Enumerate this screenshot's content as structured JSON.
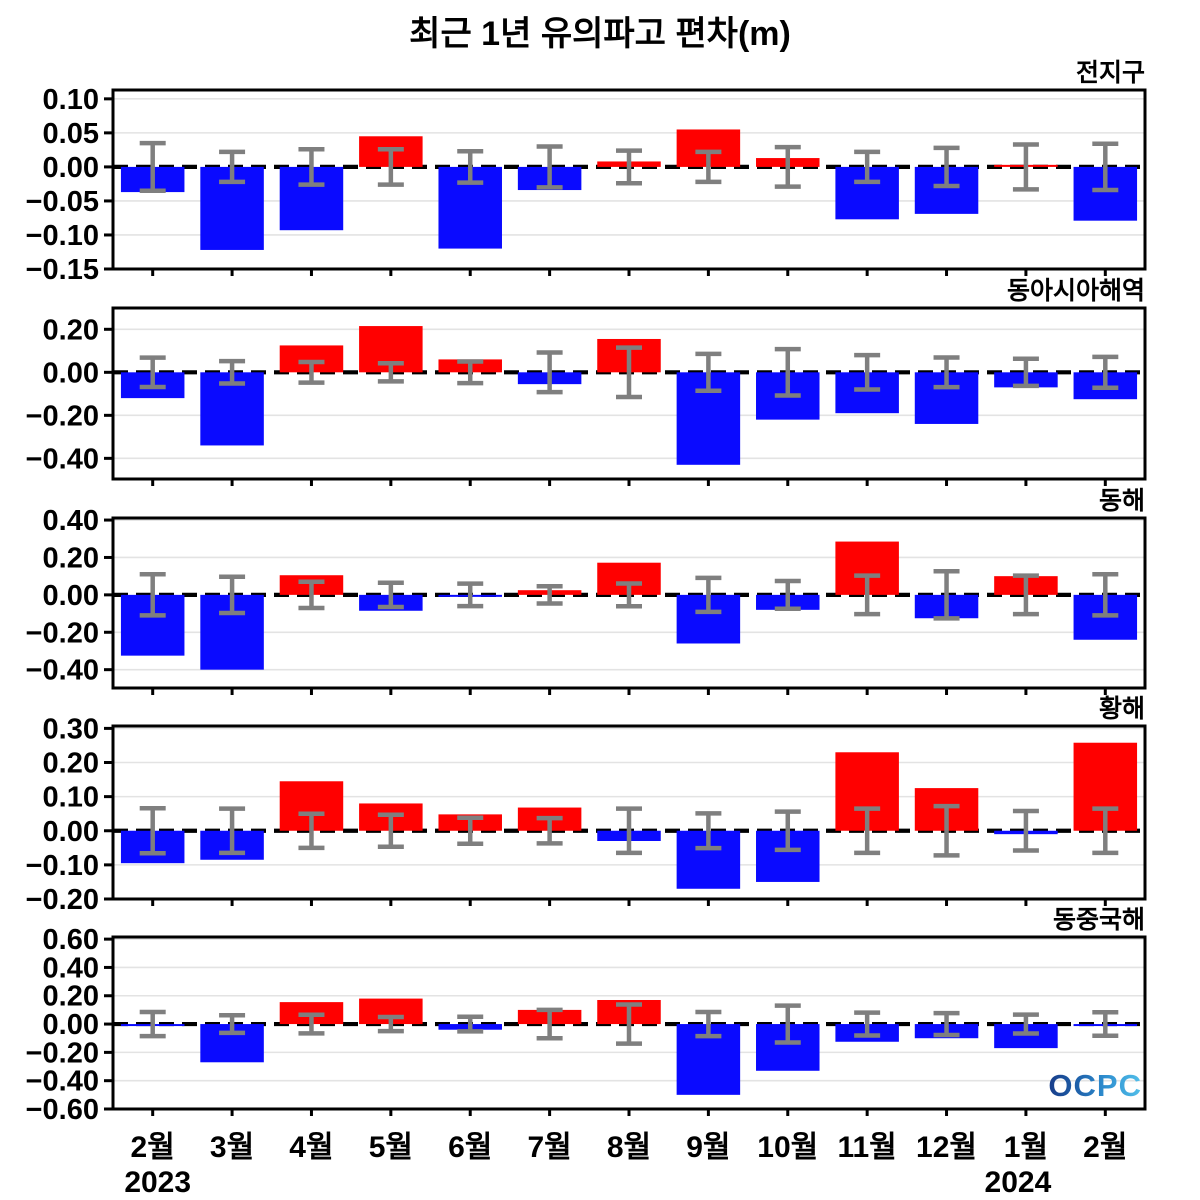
{
  "title": "최근 1년 유의파고 편차(m)",
  "logo": "OCPC",
  "x_axis": {
    "months": [
      "2월",
      "3월",
      "4월",
      "5월",
      "6월",
      "7월",
      "8월",
      "9월",
      "10월",
      "11월",
      "12월",
      "1월",
      "2월"
    ],
    "year_left": "2023",
    "year_right": "2024",
    "year_right_under_index": 11
  },
  "colors": {
    "positive_bar": "#ff0000",
    "negative_bar": "#0a0aff",
    "error_bar": "#7f7f7f",
    "zero_line": "#000000",
    "grid_line": "#e3e3e3",
    "frame": "#000000",
    "text": "#000000"
  },
  "chart_data": [
    {
      "type": "bar",
      "title": "전지구",
      "categories": [
        "2월",
        "3월",
        "4월",
        "5월",
        "6월",
        "7월",
        "8월",
        "9월",
        "10월",
        "11월",
        "12월",
        "1월",
        "2월"
      ],
      "values": [
        -0.037,
        -0.122,
        -0.093,
        0.045,
        -0.12,
        -0.034,
        0.008,
        0.055,
        0.013,
        -0.077,
        -0.069,
        0.003,
        -0.079
      ],
      "errors": [
        0.035,
        0.022,
        0.026,
        0.026,
        0.023,
        0.03,
        0.024,
        0.022,
        0.029,
        0.022,
        0.028,
        0.033,
        0.034
      ],
      "ylim": [
        -0.15,
        0.113
      ],
      "yticks": [
        {
          "value": 0.1,
          "label": "0.10"
        },
        {
          "value": 0.05,
          "label": "0.05"
        },
        {
          "value": 0.0,
          "label": "0.00"
        },
        {
          "value": -0.05,
          "label": "−0.05"
        },
        {
          "value": -0.1,
          "label": "−0.10"
        },
        {
          "value": -0.15,
          "label": "−0.15"
        }
      ],
      "grid": true,
      "legend": "none",
      "bar_color_rule": "red positive / blue negative, error bars centered on zero"
    },
    {
      "type": "bar",
      "title": "동아시아해역",
      "categories": [
        "2월",
        "3월",
        "4월",
        "5월",
        "6월",
        "7월",
        "8월",
        "9월",
        "10월",
        "11월",
        "12월",
        "1월",
        "2월"
      ],
      "values": [
        -0.12,
        -0.34,
        0.125,
        0.215,
        0.06,
        -0.055,
        0.155,
        -0.43,
        -0.22,
        -0.19,
        -0.24,
        -0.07,
        -0.125
      ],
      "errors": [
        0.068,
        0.052,
        0.048,
        0.042,
        0.05,
        0.092,
        0.115,
        0.086,
        0.108,
        0.08,
        0.069,
        0.063,
        0.072
      ],
      "ylim": [
        -0.496,
        0.299
      ],
      "yticks": [
        {
          "value": 0.2,
          "label": "0.20"
        },
        {
          "value": 0.0,
          "label": "0.00"
        },
        {
          "value": -0.2,
          "label": "−0.20"
        },
        {
          "value": -0.4,
          "label": "−0.40"
        }
      ],
      "grid": true,
      "legend": "none",
      "bar_color_rule": "red positive / blue negative, error bars centered on zero"
    },
    {
      "type": "bar",
      "title": "동해",
      "categories": [
        "2월",
        "3월",
        "4월",
        "5월",
        "6월",
        "7월",
        "8월",
        "9월",
        "10월",
        "11월",
        "12월",
        "1월",
        "2월"
      ],
      "values": [
        -0.325,
        -0.4,
        0.105,
        -0.085,
        -0.005,
        0.025,
        0.172,
        -0.26,
        -0.08,
        0.285,
        -0.125,
        0.1,
        -0.24
      ],
      "errors": [
        0.11,
        0.097,
        0.07,
        0.065,
        0.06,
        0.046,
        0.061,
        0.091,
        0.074,
        0.103,
        0.126,
        0.103,
        0.11
      ],
      "ylim": [
        -0.498,
        0.411
      ],
      "yticks": [
        {
          "value": 0.4,
          "label": "0.40"
        },
        {
          "value": 0.2,
          "label": "0.20"
        },
        {
          "value": 0.0,
          "label": "0.00"
        },
        {
          "value": -0.2,
          "label": "−0.20"
        },
        {
          "value": -0.4,
          "label": "−0.40"
        }
      ],
      "grid": true,
      "legend": "none",
      "bar_color_rule": "red positive / blue negative, error bars centered on zero"
    },
    {
      "type": "bar",
      "title": "황해",
      "categories": [
        "2월",
        "3월",
        "4월",
        "5월",
        "6월",
        "7월",
        "8월",
        "9월",
        "10월",
        "11월",
        "12월",
        "1월",
        "2월"
      ],
      "values": [
        -0.095,
        -0.085,
        0.145,
        0.08,
        0.048,
        0.068,
        -0.03,
        -0.17,
        -0.15,
        0.23,
        0.125,
        -0.01,
        0.258
      ],
      "errors": [
        0.066,
        0.065,
        0.05,
        0.047,
        0.038,
        0.037,
        0.065,
        0.051,
        0.056,
        0.065,
        0.072,
        0.058,
        0.065
      ],
      "ylim": [
        -0.2,
        0.307
      ],
      "yticks": [
        {
          "value": 0.3,
          "label": "0.30"
        },
        {
          "value": 0.2,
          "label": "0.20"
        },
        {
          "value": 0.1,
          "label": "0.10"
        },
        {
          "value": 0.0,
          "label": "0.00"
        },
        {
          "value": -0.1,
          "label": "−0.10"
        },
        {
          "value": -0.2,
          "label": "−0.20"
        }
      ],
      "grid": true,
      "legend": "none",
      "bar_color_rule": "red positive / blue negative, error bars centered on zero"
    },
    {
      "type": "bar",
      "title": "동중국해",
      "categories": [
        "2월",
        "3월",
        "4월",
        "5월",
        "6월",
        "7월",
        "8월",
        "9월",
        "10월",
        "11월",
        "12월",
        "1월",
        "2월"
      ],
      "values": [
        -0.01,
        -0.27,
        0.155,
        0.18,
        -0.04,
        0.1,
        0.17,
        -0.5,
        -0.33,
        -0.125,
        -0.1,
        -0.17,
        -0.008
      ],
      "errors": [
        0.085,
        0.062,
        0.066,
        0.05,
        0.052,
        0.1,
        0.138,
        0.085,
        0.13,
        0.081,
        0.077,
        0.067,
        0.083
      ],
      "ylim": [
        -0.6,
        0.615
      ],
      "yticks": [
        {
          "value": 0.6,
          "label": "0.60"
        },
        {
          "value": 0.4,
          "label": "0.40"
        },
        {
          "value": 0.2,
          "label": "0.20"
        },
        {
          "value": 0.0,
          "label": "0.00"
        },
        {
          "value": -0.2,
          "label": "−0.20"
        },
        {
          "value": -0.4,
          "label": "−0.40"
        },
        {
          "value": -0.6,
          "label": "−0.60"
        }
      ],
      "grid": true,
      "legend": "none",
      "bar_color_rule": "red positive / blue negative, error bars centered on zero"
    }
  ]
}
